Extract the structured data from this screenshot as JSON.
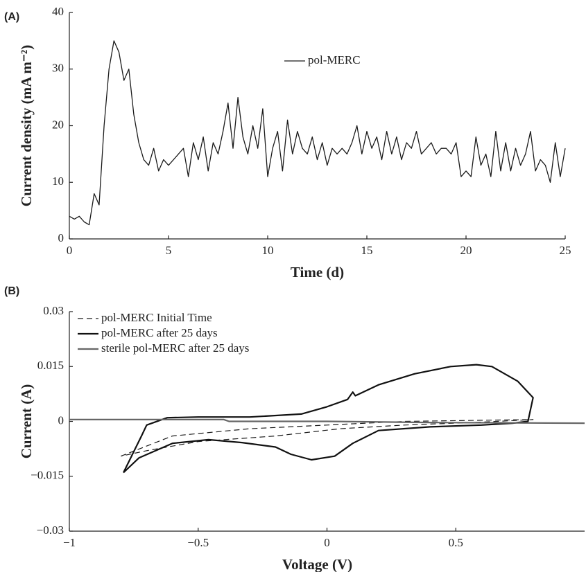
{
  "chart_data": [
    {
      "type": "line",
      "panel_label": "(A)",
      "xlabel": "Time (d)",
      "ylabel": "Current density (mA m⁻²)",
      "xlim": [
        0,
        25
      ],
      "xticks": [
        0,
        5,
        10,
        15,
        20,
        25
      ],
      "ylim": [
        0,
        40
      ],
      "yticks": [
        0,
        10,
        20,
        30,
        40
      ],
      "legend": "top-center",
      "series": [
        {
          "name": "pol-MERC",
          "color": "#1a1a1a",
          "dashed": false,
          "width": 1.3,
          "x": [
            0,
            0.25,
            0.5,
            0.75,
            1,
            1.25,
            1.5,
            1.75,
            2,
            2.25,
            2.5,
            2.75,
            3,
            3.25,
            3.5,
            3.75,
            4,
            4.25,
            4.5,
            4.75,
            5,
            5.25,
            5.5,
            5.75,
            6,
            6.25,
            6.5,
            6.75,
            7,
            7.25,
            7.5,
            7.75,
            8,
            8.25,
            8.5,
            8.75,
            9,
            9.25,
            9.5,
            9.75,
            10,
            10.25,
            10.5,
            10.75,
            11,
            11.25,
            11.5,
            11.75,
            12,
            12.25,
            12.5,
            12.75,
            13,
            13.25,
            13.5,
            13.75,
            14,
            14.25,
            14.5,
            14.75,
            15,
            15.25,
            15.5,
            15.75,
            16,
            16.25,
            16.5,
            16.75,
            17,
            17.25,
            17.5,
            17.75,
            18,
            18.25,
            18.5,
            18.75,
            19,
            19.25,
            19.5,
            19.75,
            20,
            20.25,
            20.5,
            20.75,
            21,
            21.25,
            21.5,
            21.75,
            22,
            22.25,
            22.5,
            22.75,
            23,
            23.25,
            23.5,
            23.75,
            24,
            24.25,
            24.5,
            24.75,
            25
          ],
          "values": [
            4,
            3.5,
            4,
            3,
            2.5,
            8,
            6,
            20,
            30,
            35,
            33,
            28,
            30,
            22,
            17,
            14,
            13,
            16,
            12,
            14,
            13,
            14,
            15,
            16,
            11,
            17,
            14,
            18,
            12,
            17,
            15,
            19,
            24,
            16,
            25,
            18,
            15,
            20,
            16,
            23,
            11,
            16,
            19,
            12,
            21,
            15,
            19,
            16,
            15,
            18,
            14,
            17,
            13,
            16,
            15,
            16,
            15,
            17,
            20,
            15,
            19,
            16,
            18,
            14,
            19,
            15,
            18,
            14,
            17,
            16,
            19,
            15,
            16,
            17,
            15,
            16,
            16,
            15,
            17,
            11,
            12,
            11,
            18,
            13,
            15,
            11,
            19,
            12,
            17,
            12,
            16,
            13,
            15,
            19,
            12,
            14,
            13,
            10,
            17,
            11,
            16
          ]
        }
      ]
    },
    {
      "type": "line",
      "panel_label": "(B)",
      "xlabel": "Voltage (V)",
      "ylabel": "Current (A)",
      "xlim": [
        -1,
        1
      ],
      "xticks": [
        {
          "value": -1,
          "label": "−1"
        },
        {
          "value": -0.5,
          "label": "−0.5"
        },
        0,
        0.5
      ],
      "ylim": [
        -0.03,
        0.03
      ],
      "yticks": [
        {
          "value": -0.03,
          "label": "−0.03"
        },
        {
          "value": -0.015,
          "label": "−0.015"
        },
        0,
        0.015,
        0.03
      ],
      "legend": "top-left",
      "series": [
        {
          "name": "pol-MERC Initial Time",
          "color": "#1a1a1a",
          "dashed": true,
          "width": 1.2,
          "x": [
            -0.8,
            -0.6,
            -0.3,
            0,
            0.3,
            0.6,
            0.8,
            0.6,
            0.3,
            0.05,
            -0.2,
            -0.5,
            -0.7,
            -0.8
          ],
          "values": [
            -0.0095,
            -0.004,
            -0.002,
            -0.001,
            0,
            0.0003,
            0.0005,
            -0.0002,
            -0.001,
            -0.002,
            -0.004,
            -0.0055,
            -0.008,
            -0.0095
          ]
        },
        {
          "name": "pol-MERC after 25 days",
          "color": "#111111",
          "dashed": false,
          "width": 2.2,
          "x": [
            -0.79,
            -0.72,
            -0.7,
            -0.62,
            -0.5,
            -0.3,
            -0.1,
            0,
            0.08,
            0.1,
            0.11,
            0.2,
            0.34,
            0.48,
            0.58,
            0.64,
            0.74,
            0.8,
            0.78,
            0.72,
            0.6,
            0.4,
            0.2,
            0.1,
            0.03,
            -0.06,
            -0.14,
            -0.2,
            -0.33,
            -0.46,
            -0.6,
            -0.73,
            -0.79
          ],
          "values": [
            -0.014,
            -0.004,
            -0.001,
            0.001,
            0.0012,
            0.0012,
            0.002,
            0.004,
            0.006,
            0.008,
            0.007,
            0.01,
            0.013,
            0.015,
            0.0155,
            0.015,
            0.011,
            0.0065,
            0,
            -0.0005,
            -0.001,
            -0.0015,
            -0.0025,
            -0.006,
            -0.0095,
            -0.0105,
            -0.009,
            -0.007,
            -0.0058,
            -0.005,
            -0.006,
            -0.01,
            -0.014
          ]
        },
        {
          "name": "sterile pol-MERC after 25 days",
          "color": "#666666",
          "dashed": false,
          "width": 2.2,
          "x": [
            -1,
            -0.4,
            -0.38,
            0,
            0.4,
            1
          ],
          "values": [
            0.0005,
            0.0005,
            0,
            0,
            -0.0003,
            -0.0005
          ]
        }
      ]
    }
  ]
}
